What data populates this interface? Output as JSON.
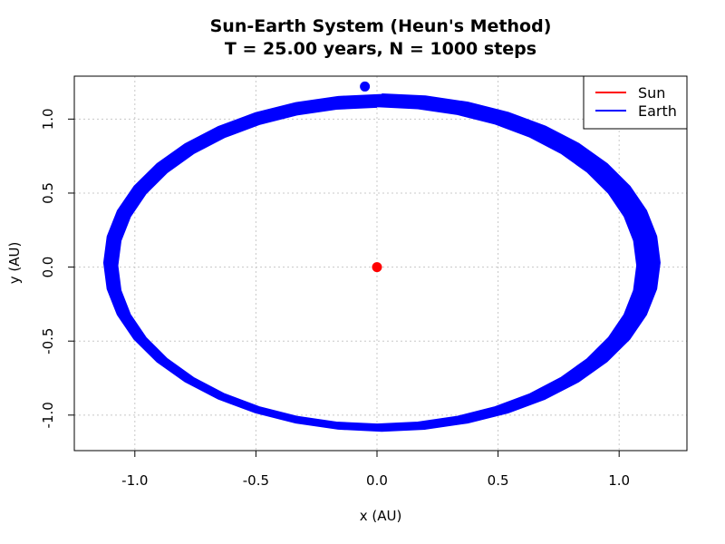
{
  "chart_data": {
    "type": "line",
    "title": "Sun-Earth System (Heun's Method)",
    "subtitle": "T = 25.00 years, N = 1000 steps",
    "xlabel": "x (AU)",
    "ylabel": "y (AU)",
    "xlim": [
      -1.25,
      1.28
    ],
    "ylim": [
      -1.24,
      1.29
    ],
    "x_ticks": [
      -1.0,
      -0.5,
      0.0,
      0.5,
      1.0
    ],
    "x_tick_labels": [
      "-1.0",
      "-0.5",
      "0.0",
      "0.5",
      "1.0"
    ],
    "y_ticks": [
      -1.0,
      -0.5,
      0.0,
      0.5,
      1.0
    ],
    "y_tick_labels": [
      "-1.0",
      "-0.5",
      "0.0",
      "0.5",
      "1.0"
    ],
    "grid": true,
    "legend_position": "top-right",
    "series": [
      {
        "name": "Sun",
        "color": "#ff0000",
        "type": "point",
        "x": [
          0.0
        ],
        "y": [
          0.0
        ]
      },
      {
        "name": "Earth",
        "color": "#0000ff",
        "type": "orbit",
        "orbit_model": {
          "turns": 25,
          "points_per_turn": 40,
          "center_x": [
            0.0,
            0.02
          ],
          "semi_axis_x": [
            1.07,
            1.15
          ],
          "semi_axis_y": [
            1.07,
            1.14
          ],
          "center_y": [
            0.01,
            0.03
          ]
        },
        "final_position": {
          "x": -0.05,
          "y": 1.22
        }
      }
    ],
    "legend": [
      {
        "label": "Sun",
        "color": "#ff0000"
      },
      {
        "label": "Earth",
        "color": "#0000ff"
      }
    ]
  }
}
